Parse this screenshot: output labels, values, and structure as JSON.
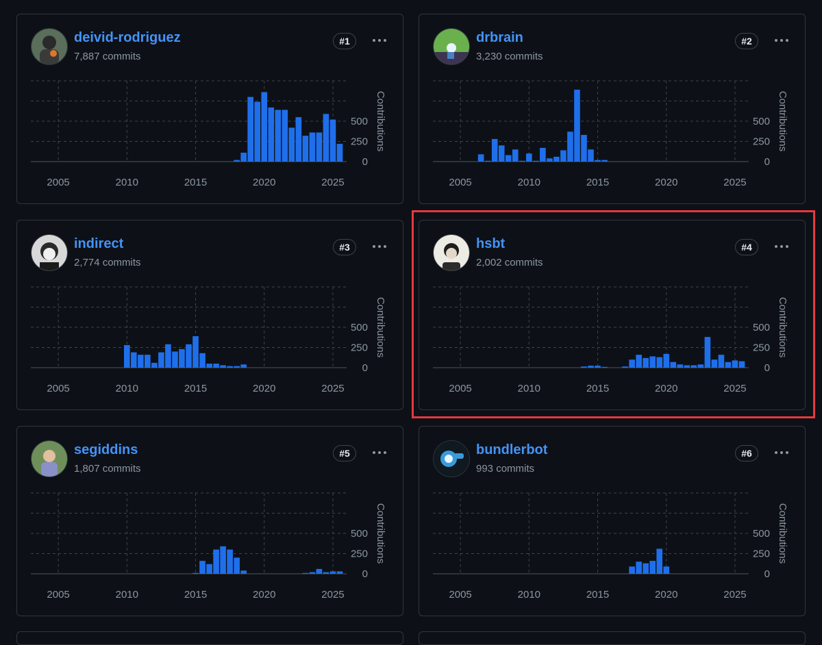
{
  "colors": {
    "bar": "#1f6feb",
    "link": "#4493f8",
    "grid": "#3d444d",
    "text": "#8d96a0",
    "highlight": "#e5393d"
  },
  "icons": {
    "menu": "kebab-horizontal-icon"
  },
  "contributors": [
    {
      "username": "deivid-rodriguez",
      "commits": "7,887 commits",
      "rank": "#1"
    },
    {
      "username": "drbrain",
      "commits": "3,230 commits",
      "rank": "#2"
    },
    {
      "username": "indirect",
      "commits": "2,774 commits",
      "rank": "#3"
    },
    {
      "username": "hsbt",
      "commits": "2,002 commits",
      "rank": "#4"
    },
    {
      "username": "segiddins",
      "commits": "1,807 commits",
      "rank": "#5"
    },
    {
      "username": "bundlerbot",
      "commits": "993 commits",
      "rank": "#6"
    }
  ],
  "chart_data": [
    {
      "type": "bar",
      "title": "deivid-rodriguez",
      "ylabel": "Contributions",
      "xlim": [
        2003,
        2026
      ],
      "ylim": [
        0,
        1000
      ],
      "xticks": [
        "2005",
        "2010",
        "2015",
        "2020",
        "2025"
      ],
      "yticks": [
        "500",
        "250",
        "0"
      ],
      "grid": true,
      "x": [
        2018.0,
        2018.5,
        2019.0,
        2019.5,
        2020.0,
        2020.5,
        2021.0,
        2021.5,
        2022.0,
        2022.5,
        2023.0,
        2023.5,
        2024.0,
        2024.5,
        2025.0,
        2025.5
      ],
      "values": [
        20,
        110,
        800,
        740,
        860,
        670,
        640,
        640,
        420,
        550,
        320,
        360,
        360,
        590,
        520,
        220
      ]
    },
    {
      "type": "bar",
      "title": "drbrain",
      "ylabel": "Contributions",
      "xlim": [
        2003,
        2026
      ],
      "ylim": [
        0,
        1000
      ],
      "xticks": [
        "2005",
        "2010",
        "2015",
        "2020",
        "2025"
      ],
      "yticks": [
        "500",
        "250",
        "0"
      ],
      "grid": true,
      "x": [
        2006.5,
        2007.0,
        2007.5,
        2008.0,
        2008.5,
        2009.0,
        2009.5,
        2010.0,
        2010.5,
        2011.0,
        2011.5,
        2012.0,
        2012.5,
        2013.0,
        2013.5,
        2014.0,
        2014.5,
        2015.0,
        2015.5
      ],
      "values": [
        90,
        10,
        280,
        200,
        80,
        150,
        10,
        100,
        10,
        170,
        40,
        60,
        140,
        370,
        890,
        330,
        150,
        20,
        20
      ]
    },
    {
      "type": "bar",
      "title": "indirect",
      "ylabel": "Contributions",
      "xlim": [
        2003,
        2026
      ],
      "ylim": [
        0,
        1000
      ],
      "xticks": [
        "2005",
        "2010",
        "2015",
        "2020",
        "2025"
      ],
      "yticks": [
        "500",
        "250",
        "0"
      ],
      "grid": true,
      "x": [
        2010.0,
        2010.5,
        2011.0,
        2011.5,
        2012.0,
        2012.5,
        2013.0,
        2013.5,
        2014.0,
        2014.5,
        2015.0,
        2015.5,
        2016.0,
        2016.5,
        2017.0,
        2017.5,
        2018.0,
        2018.5
      ],
      "values": [
        280,
        190,
        160,
        160,
        60,
        190,
        290,
        200,
        230,
        290,
        390,
        180,
        50,
        50,
        30,
        20,
        20,
        40
      ]
    },
    {
      "type": "bar",
      "title": "hsbt",
      "ylabel": "Contributions",
      "xlim": [
        2003,
        2026
      ],
      "ylim": [
        0,
        1000
      ],
      "xticks": [
        "2005",
        "2010",
        "2015",
        "2020",
        "2025"
      ],
      "yticks": [
        "500",
        "250",
        "0"
      ],
      "grid": true,
      "x": [
        2014.0,
        2014.5,
        2015.0,
        2015.5,
        2017.0,
        2017.5,
        2018.0,
        2018.5,
        2019.0,
        2019.5,
        2020.0,
        2020.5,
        2021.0,
        2021.5,
        2022.0,
        2022.5,
        2023.0,
        2023.5,
        2024.0,
        2024.5,
        2025.0,
        2025.5
      ],
      "values": [
        15,
        25,
        25,
        10,
        15,
        100,
        160,
        120,
        140,
        130,
        170,
        70,
        40,
        30,
        30,
        40,
        380,
        100,
        160,
        70,
        90,
        80
      ]
    },
    {
      "type": "bar",
      "title": "segiddins",
      "ylabel": "Contributions",
      "xlim": [
        2003,
        2026
      ],
      "ylim": [
        0,
        1000
      ],
      "xticks": [
        "2005",
        "2010",
        "2015",
        "2020",
        "2025"
      ],
      "yticks": [
        "500",
        "250",
        "0"
      ],
      "grid": true,
      "x": [
        2015.0,
        2015.5,
        2016.0,
        2016.5,
        2017.0,
        2017.5,
        2018.0,
        2018.5,
        2023.0,
        2023.5,
        2024.0,
        2024.5,
        2025.0,
        2025.5
      ],
      "values": [
        10,
        160,
        120,
        300,
        340,
        300,
        200,
        40,
        10,
        20,
        60,
        20,
        30,
        30
      ]
    },
    {
      "type": "bar",
      "title": "bundlerbot",
      "ylabel": "Contributions",
      "xlim": [
        2003,
        2026
      ],
      "ylim": [
        0,
        1000
      ],
      "xticks": [
        "2005",
        "2010",
        "2015",
        "2020",
        "2025"
      ],
      "yticks": [
        "500",
        "250",
        "0"
      ],
      "grid": true,
      "x": [
        2017.5,
        2018.0,
        2018.5,
        2019.0,
        2019.5,
        2020.0
      ],
      "values": [
        90,
        150,
        130,
        160,
        310,
        90
      ]
    }
  ]
}
